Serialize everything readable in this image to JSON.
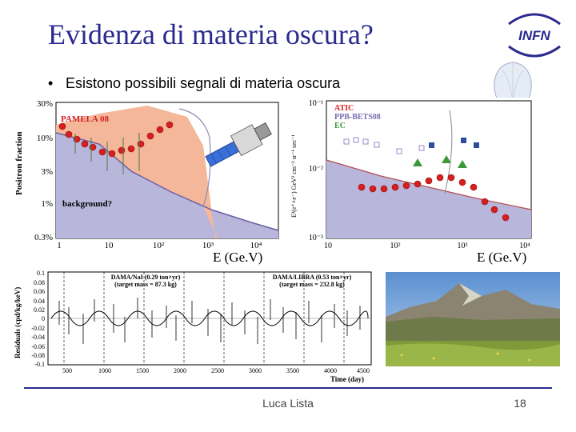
{
  "slide": {
    "title": "Evidenza di materia oscura?",
    "bullet": "Esistono possibili segnali di materia oscura",
    "author": "Luca Lista",
    "page_number": "18"
  },
  "logo": {
    "text": "INFN"
  },
  "colors": {
    "title": "#2a2a8f",
    "footer_line": "#2a2a8f",
    "positron_fill": "#f4b79a",
    "background_fill": "#b9b6dc",
    "data_red": "#d81e1e"
  },
  "chart_left": {
    "y_ticks": [
      "30%",
      "10%",
      "3%",
      "1%",
      "0.3%"
    ],
    "x_ticks": [
      "1",
      "10",
      "10²",
      "10³",
      "10⁴"
    ],
    "ylabel": "Positron fraction",
    "legend": "PAMELA 08",
    "annotation": "background?",
    "xlabel_caption": "E (Ge.V)"
  },
  "chart_right": {
    "y_ticks": [
      "10⁻¹",
      "10⁻²",
      "10⁻³"
    ],
    "x_ticks": [
      "10",
      "10²",
      "10³",
      "10⁴"
    ],
    "ylabel": "E³(e⁺+e⁻) GeV² cm⁻² sr⁻¹ sec⁻¹",
    "legend": [
      "ATIC",
      "PPB-BETS08",
      "EC"
    ],
    "xlabel_caption": "E (Ge.V)"
  },
  "chart_dama": {
    "ylabel": "Residuals (cpd/kg/keV)",
    "xlabel": "Time (day)",
    "y_ticks": [
      "0.1",
      "0.08",
      "0.06",
      "0.04",
      "0.02",
      "0",
      "-0.02",
      "-0.04",
      "-0.06",
      "-0.08",
      "-0.1"
    ],
    "x_ticks": [
      "500",
      "1000",
      "1500",
      "2000",
      "2500",
      "3000",
      "3500",
      "4000",
      "4500"
    ],
    "label_1": "DAMA/NaI (0.29 ton×yr)",
    "label_1b": "(target mass = 87.3 kg)",
    "label_2": "DAMA/LIBRA (0.53 ton×yr)",
    "label_2b": "(target mass = 232.8 kg)"
  }
}
